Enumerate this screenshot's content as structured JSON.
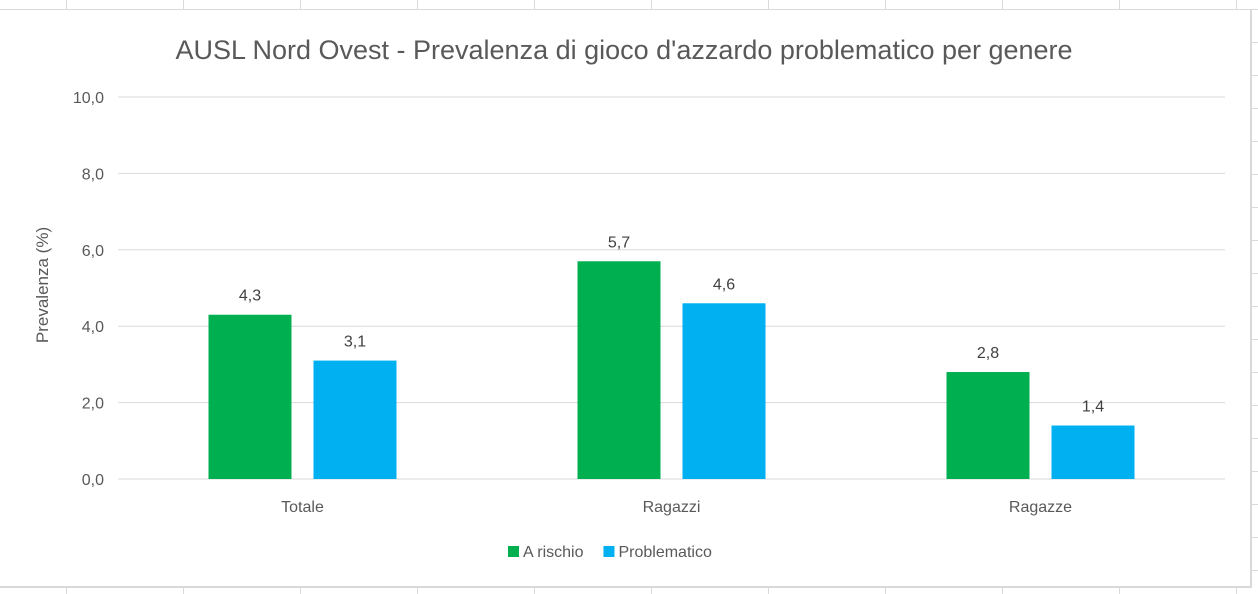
{
  "chart_data": {
    "type": "bar",
    "title": "AUSL Nord Ovest - Prevalenza di gioco d'azzardo problematico per genere",
    "xlabel": "",
    "ylabel": "Prevalenza (%)",
    "ylim": [
      0,
      10
    ],
    "yticks": [
      "0,0",
      "2,0",
      "4,0",
      "6,0",
      "8,0",
      "10,0"
    ],
    "ytick_values": [
      0,
      2,
      4,
      6,
      8,
      10
    ],
    "categories": [
      "Totale",
      "Ragazzi",
      "Ragazze"
    ],
    "series": [
      {
        "name": "A rischio",
        "color": "#00b050",
        "values": [
          4.3,
          5.7,
          2.8
        ],
        "labels": [
          "4,3",
          "5,7",
          "2,8"
        ]
      },
      {
        "name": "Problematico",
        "color": "#00b0f0",
        "values": [
          3.1,
          4.6,
          1.4
        ],
        "labels": [
          "3,1",
          "4,6",
          "1,4"
        ]
      }
    ],
    "grid": true,
    "legend": "bottom"
  }
}
